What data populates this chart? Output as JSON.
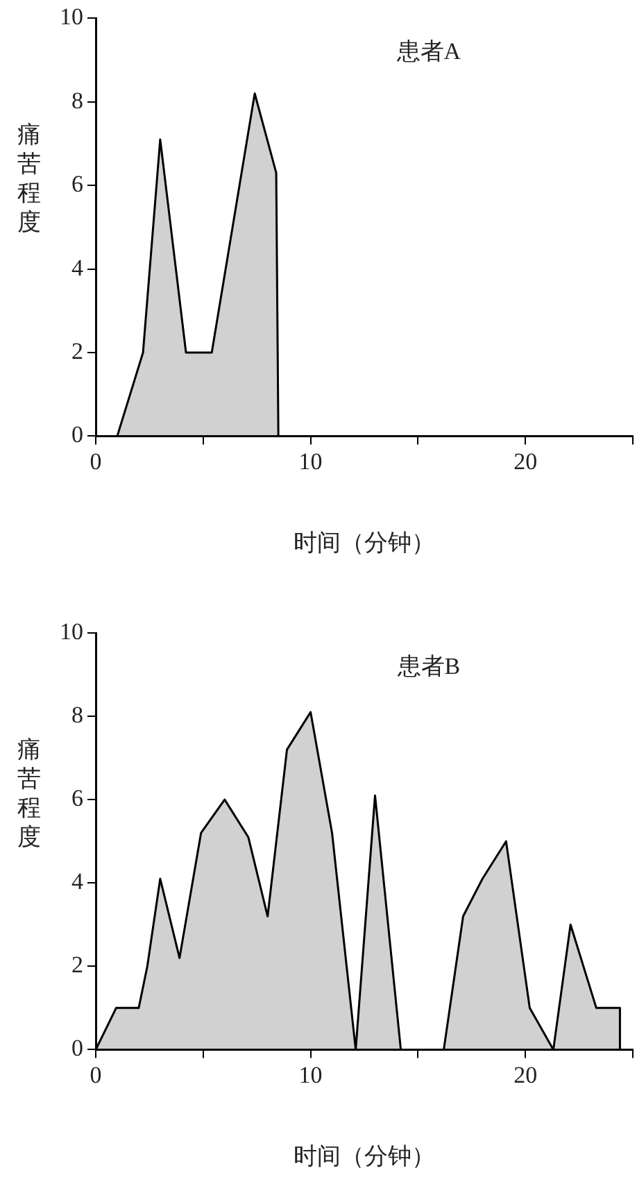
{
  "chart_data": [
    {
      "type": "area",
      "ylabel": "痛苦程度",
      "xlabel": "时间（分钟）",
      "annotations": [
        "患者A"
      ],
      "x": [
        1,
        2.2,
        3,
        4.2,
        5.4,
        7.4,
        8.4,
        8.5
      ],
      "values": [
        0,
        2,
        7.1,
        2,
        2,
        8.2,
        6.3,
        0
      ],
      "color": "#000000",
      "xlim": [
        0,
        25
      ],
      "ylim": [
        0,
        10
      ],
      "xticks": [
        0,
        {
          "value": 5,
          "label": null
        },
        10,
        {
          "value": 15,
          "label": null
        },
        20,
        {
          "value": 25,
          "label": null
        }
      ],
      "yticks": [
        0,
        2,
        4,
        6,
        8,
        10
      ],
      "grid": false,
      "legend": false
    },
    {
      "type": "area",
      "ylabel": "痛苦程度",
      "xlabel": "时间（分钟）",
      "annotations": [
        "患者B"
      ],
      "x": [
        0,
        0.95,
        2,
        2.4,
        3,
        3.9,
        4.9,
        6,
        7.1,
        8,
        8.9,
        10,
        11,
        12.1,
        13,
        14.2,
        16.2,
        17.1,
        18,
        19.1,
        20.2,
        21.3,
        22.1,
        23.3,
        24.4,
        24.4
      ],
      "values": [
        0,
        1,
        1,
        2,
        4.1,
        2.2,
        5.2,
        6,
        5.1,
        3.2,
        7.2,
        8.1,
        5.2,
        0,
        6.1,
        0,
        0,
        3.2,
        4.1,
        5,
        1,
        0,
        3,
        1,
        1,
        0
      ],
      "color": "#000000",
      "xlim": [
        0,
        25
      ],
      "ylim": [
        0,
        10
      ],
      "xticks": [
        0,
        {
          "value": 5,
          "label": null
        },
        10,
        {
          "value": 15,
          "label": null
        },
        20,
        {
          "value": 25,
          "label": null
        }
      ],
      "yticks": [
        0,
        2,
        4,
        6,
        8,
        10
      ],
      "grid": false,
      "legend": false
    }
  ]
}
